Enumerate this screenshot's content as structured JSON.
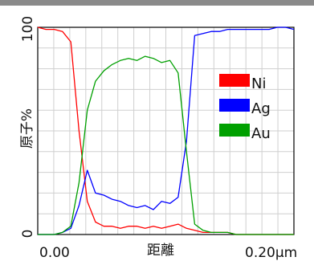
{
  "chart_data": {
    "type": "line",
    "xlabel": "距離",
    "ylabel": "原子%",
    "x_tick_labels": [
      "0.00",
      "0.20μm"
    ],
    "y_tick_labels": [
      "0",
      "100"
    ],
    "xlim": [
      0,
      0.2
    ],
    "ylim": [
      0,
      100
    ],
    "grid": true,
    "legend_position": "top-right",
    "x": [
      0,
      0.0064,
      0.0129,
      0.0193,
      0.0258,
      0.0322,
      0.0387,
      0.0451,
      0.0516,
      0.058,
      0.0645,
      0.0709,
      0.0774,
      0.0838,
      0.0903,
      0.0967,
      0.1032,
      0.1096,
      0.1161,
      0.1225,
      0.129,
      0.1354,
      0.1419,
      0.1483,
      0.1548,
      0.1612,
      0.1677,
      0.1741,
      0.1806,
      0.187,
      0.1935,
      0.2
    ],
    "series": [
      {
        "name": "Ni",
        "color": "#ff0000",
        "values": [
          100,
          99,
          99,
          98,
          93,
          50,
          16,
          6,
          4,
          4,
          3,
          4,
          4,
          3,
          4,
          3,
          4,
          5,
          3,
          2,
          1,
          1,
          1,
          1,
          0,
          0,
          0,
          0,
          0,
          0,
          0,
          0
        ]
      },
      {
        "name": "Ag",
        "color": "#0000ff",
        "values": [
          0,
          0,
          0,
          1,
          3,
          14,
          31,
          20,
          19,
          17,
          16,
          14,
          13,
          14,
          12,
          16,
          15,
          18,
          45,
          96,
          97,
          98,
          98,
          99,
          99,
          99,
          99,
          99,
          99,
          100,
          100,
          99
        ]
      },
      {
        "name": "Au",
        "color": "#00a000",
        "values": [
          0,
          0,
          0,
          1,
          4,
          25,
          60,
          74,
          79,
          82,
          84,
          85,
          84,
          86,
          85,
          83,
          84,
          78,
          40,
          5,
          2,
          1,
          1,
          1,
          0,
          0,
          0,
          0,
          0,
          0,
          0,
          0
        ]
      }
    ]
  }
}
